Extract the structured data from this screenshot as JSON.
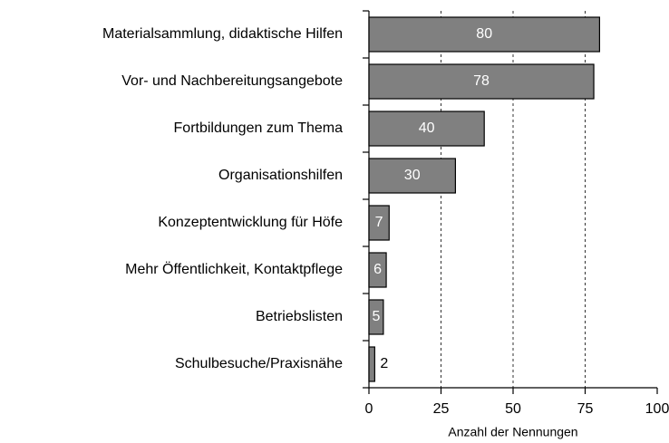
{
  "chart_data": {
    "type": "bar",
    "orientation": "horizontal",
    "xlabel": "Anzahl der Nennungen",
    "categories": [
      "Materialsammlung, didaktische Hilfen",
      "Vor- und Nachbereitungsangebote",
      "Fortbildungen zum Thema",
      "Organisationshilfen",
      "Konzeptentwicklung für Höfe",
      "Mehr Öffentlichkeit, Kontaktpflege",
      "Betriebslisten",
      "Schulbesuche/Praxisnähe"
    ],
    "values": [
      80,
      78,
      40,
      30,
      7,
      6,
      5,
      2
    ],
    "color": "#808080",
    "xlim": [
      0,
      100
    ],
    "xticks": [
      0,
      25,
      50,
      75,
      100
    ],
    "grid": true
  }
}
